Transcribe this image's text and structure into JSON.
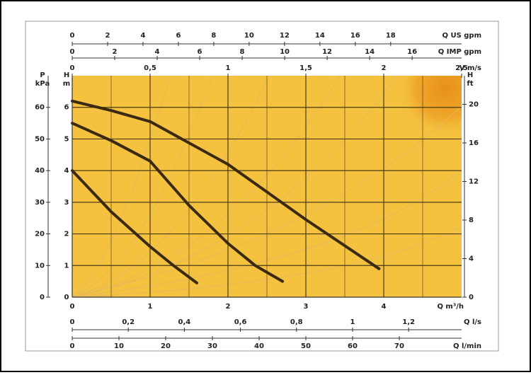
{
  "chart_data": {
    "type": "line",
    "x_label": "Q m³/h",
    "y_label": "H",
    "y_unit": "m",
    "xlim": [
      0,
      5
    ],
    "xticks": [
      0,
      1,
      2,
      3,
      4
    ],
    "ylim": [
      0,
      7
    ],
    "yticks": [
      0,
      1,
      2,
      3,
      4,
      5,
      6
    ],
    "grid": true,
    "series": [
      {
        "color": "#3b2a12",
        "x": [
          0,
          0.5,
          1.0,
          1.3,
          1.6
        ],
        "values": [
          4.0,
          2.7,
          1.6,
          1.0,
          0.45
        ]
      },
      {
        "color": "#3b2a12",
        "x": [
          0,
          0.5,
          1.0,
          1.5,
          2.0,
          2.35,
          2.7
        ],
        "values": [
          5.5,
          4.95,
          4.3,
          2.9,
          1.7,
          1.0,
          0.5
        ]
      },
      {
        "color": "#3b2a12",
        "x": [
          0,
          0.5,
          1.0,
          2.0,
          3.0,
          3.94
        ],
        "values": [
          6.2,
          5.9,
          5.55,
          4.2,
          2.45,
          0.9
        ]
      }
    ],
    "axes": [
      {
        "side": "top",
        "label": "Q US gpm",
        "lim": [
          0,
          22.01
        ],
        "ticks": [
          0,
          2,
          4,
          6,
          8,
          10,
          12,
          14,
          16,
          18
        ]
      },
      {
        "side": "top",
        "label": "Q IMP gpm",
        "lim": [
          0,
          18.33
        ],
        "ticks": [
          0,
          2,
          4,
          6,
          8,
          10,
          12,
          14,
          16
        ]
      },
      {
        "side": "top",
        "label": "V m/s",
        "lim": [
          0,
          2.5
        ],
        "ticks": [
          0,
          {
            "value": 0.5,
            "label": "0,5"
          },
          1,
          {
            "value": 1.5,
            "label": "1,5"
          },
          2,
          {
            "value": 2.5,
            "label": "2,5"
          }
        ]
      },
      {
        "side": "bottom",
        "label": "Q l/s",
        "lim": [
          0,
          1.389
        ],
        "ticks": [
          0,
          {
            "value": 0.2,
            "label": "0,2"
          },
          {
            "value": 0.4,
            "label": "0,4"
          },
          {
            "value": 0.6,
            "label": "0,6"
          },
          {
            "value": 0.8,
            "label": "0,8"
          },
          1,
          {
            "value": 1.2,
            "label": "1,2"
          }
        ]
      },
      {
        "side": "bottom",
        "label": "Q l/min",
        "lim": [
          0,
          83.33
        ],
        "ticks": [
          0,
          10,
          20,
          30,
          40,
          50,
          60,
          70
        ]
      },
      {
        "side": "left",
        "label": "P",
        "unit": "kPa",
        "lim": [
          0,
          70
        ],
        "ticks": [
          0,
          10,
          20,
          30,
          40,
          50,
          60
        ]
      },
      {
        "side": "right",
        "label": "H",
        "unit": "ft",
        "lim": [
          0,
          22.97
        ],
        "ticks": [
          0,
          4,
          8,
          12,
          16,
          20
        ]
      }
    ]
  }
}
